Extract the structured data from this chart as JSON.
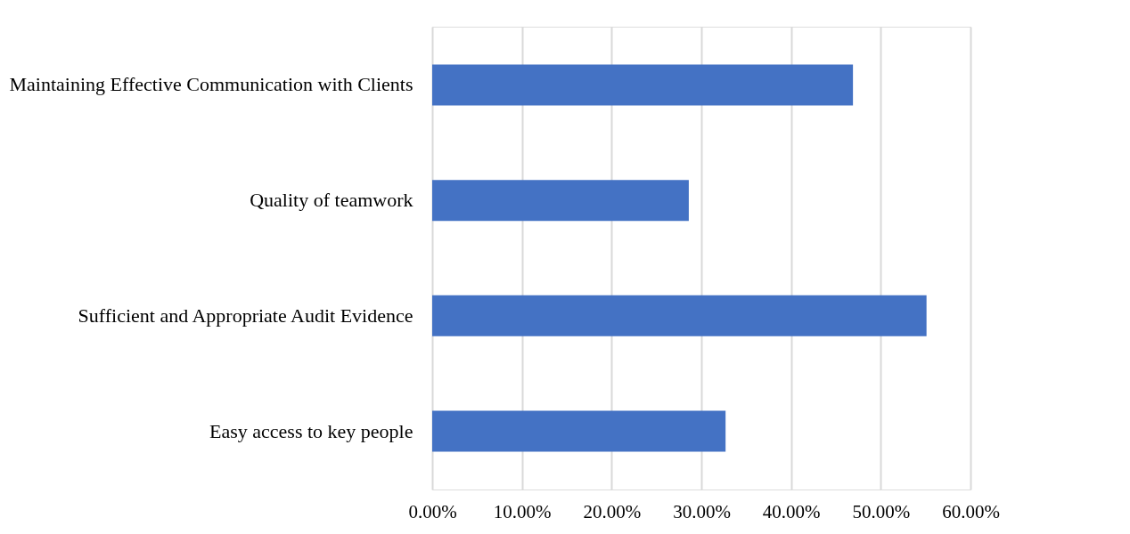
{
  "chart_data": {
    "type": "bar",
    "orientation": "horizontal",
    "categories": [
      "Maintaining Effective Communication with Clients",
      "Quality of teamwork",
      "Sufficient and Appropriate Audit Evidence",
      "Easy access to key people"
    ],
    "values": [
      46.9,
      28.6,
      55.1,
      32.7
    ],
    "color": "#4472c4",
    "xlim": [
      0,
      60
    ],
    "xticks": [
      {
        "value": 0,
        "label": "0.00%"
      },
      {
        "value": 10,
        "label": "10.00%"
      },
      {
        "value": 20,
        "label": "20.00%"
      },
      {
        "value": 30,
        "label": "30.00%"
      },
      {
        "value": 40,
        "label": "40.00%"
      },
      {
        "value": 50,
        "label": "50.00%"
      },
      {
        "value": 60,
        "label": "60.00%"
      }
    ],
    "grid": "x"
  }
}
